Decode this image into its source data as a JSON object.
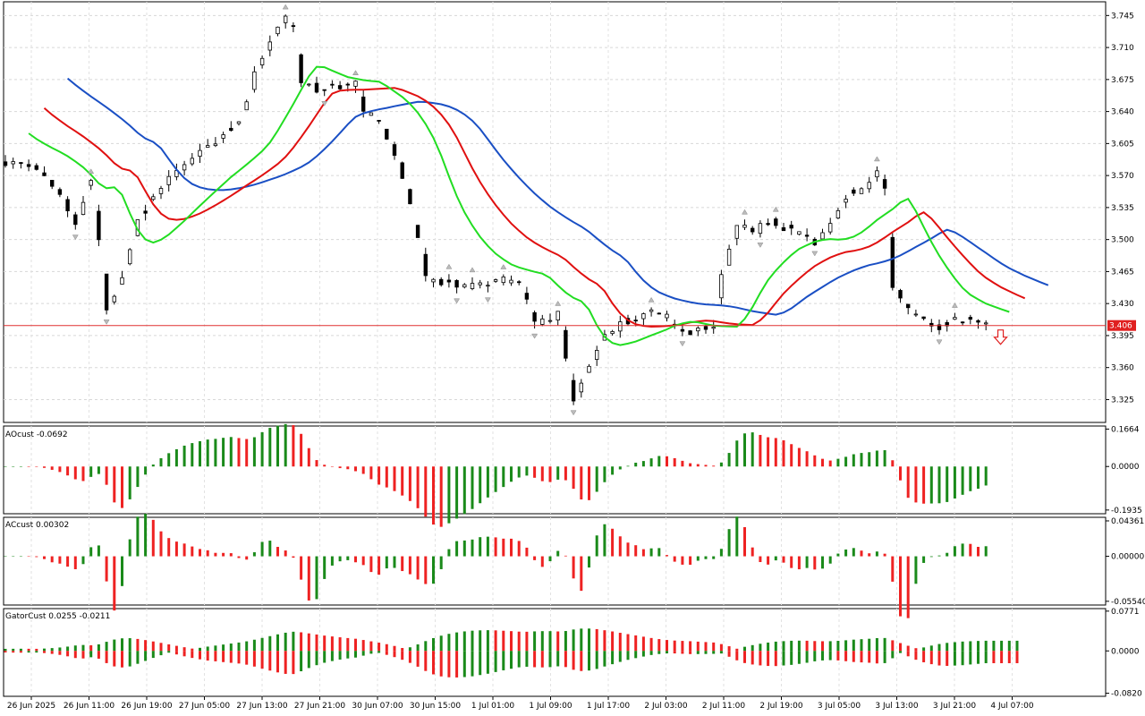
{
  "chart_data": {
    "type": "candlestick",
    "main": {
      "y_ticks": [
        "3.745",
        "3.710",
        "3.675",
        "3.640",
        "3.605",
        "3.570",
        "3.535",
        "3.500",
        "3.465",
        "3.430",
        "3.395",
        "3.360",
        "3.325"
      ],
      "ylim": [
        3.3,
        3.76
      ],
      "current_price": "3.406",
      "current_price_value": 3.406,
      "indicator_colors": {
        "jaw": "#1a4fc4",
        "teeth": "#e01010",
        "lips": "#22dd22"
      },
      "x_labels": [
        "26 Jun 2025",
        "26 Jun 11:00",
        "26 Jun 19:00",
        "27 Jun 05:00",
        "27 Jun 13:00",
        "27 Jun 21:00",
        "30 Jun 07:00",
        "30 Jun 15:00",
        "1 Jul 01:00",
        "1 Jul 09:00",
        "1 Jul 17:00",
        "2 Jul 03:00",
        "2 Jul 11:00",
        "2 Jul 19:00",
        "3 Jul 05:00",
        "3 Jul 13:00",
        "3 Jul 21:00",
        "4 Jul 07:00"
      ]
    },
    "ao": {
      "label": "AOcust -0.0692",
      "y_ticks": [
        "0.1664",
        "0.0000",
        "-0.1935"
      ],
      "ylim": [
        -0.21,
        0.18
      ],
      "up_color": "#1a8a1a",
      "down_color": "#ee2222"
    },
    "ac": {
      "label": "ACcust 0.00302",
      "y_ticks": [
        "0.04361",
        "0.00000",
        "-0.05540"
      ],
      "ylim": [
        -0.06,
        0.048
      ]
    },
    "gator": {
      "label": "GatorCust 0.0255 -0.0211",
      "y_ticks": [
        "0.0771",
        "0.0000",
        "-0.0820"
      ],
      "ylim": [
        -0.088,
        0.082
      ]
    }
  }
}
